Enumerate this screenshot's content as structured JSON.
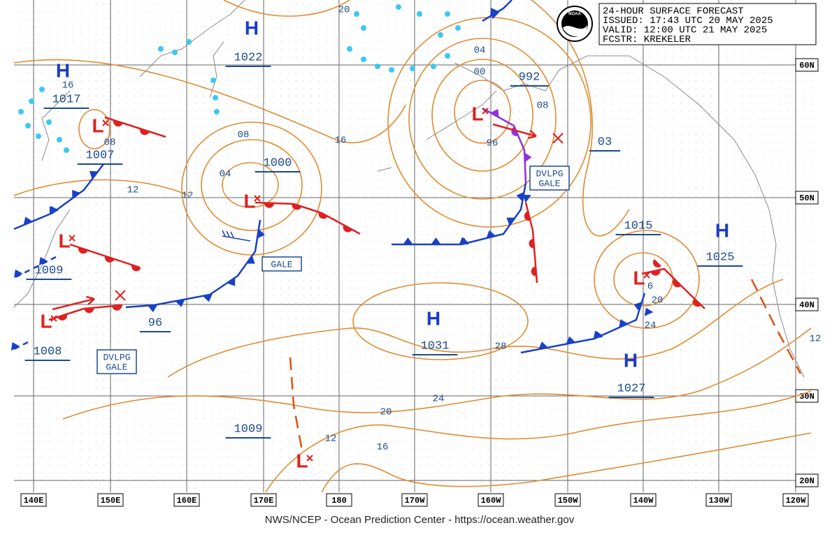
{
  "header": {
    "lines": [
      "24-HOUR SURFACE FORECAST",
      "ISSUED: 17:43 UTC 20 MAY 2025",
      "VALID: 12:00 UTC 21 MAY 2025",
      "FCSTR: KREKELER"
    ]
  },
  "logo": "NOAA",
  "longitude_labels": [
    "140E",
    "150E",
    "160E",
    "170E",
    "180",
    "170W",
    "160W",
    "150W",
    "140W",
    "130W",
    "120W"
  ],
  "latitude_labels": [
    "60N",
    "50N",
    "40N",
    "30N",
    "20N"
  ],
  "pressure_centers": [
    {
      "symbol": "H",
      "pressure": "1022"
    },
    {
      "symbol": "H",
      "pressure": "1017"
    },
    {
      "symbol": "L",
      "pressure": "1007"
    },
    {
      "symbol": "L",
      "pressure": "1000"
    },
    {
      "symbol": "L",
      "pressure": "1009"
    },
    {
      "symbol": "L",
      "pressure": "1008"
    },
    {
      "pressure": "96"
    },
    {
      "symbol": "L",
      "pressure": "992"
    },
    {
      "pressure": "03"
    },
    {
      "symbol": "H",
      "pressure": "1031"
    },
    {
      "symbol": "L",
      "pressure": "1015"
    },
    {
      "symbol": "H",
      "pressure": "1025"
    },
    {
      "symbol": "H",
      "pressure": "1027"
    },
    {
      "symbol": "L",
      "pressure": "1009"
    }
  ],
  "isobar_labels": [
    "20",
    "16",
    "08",
    "12",
    "12",
    "08",
    "04",
    "16",
    "04",
    "00",
    "08",
    "96",
    "6",
    "20",
    "24",
    "28",
    "24",
    "20",
    "16",
    "12",
    "12"
  ],
  "warnings": [
    {
      "lines": [
        "GALE"
      ]
    },
    {
      "lines": [
        "DVLPG",
        "GALE"
      ]
    },
    {
      "lines": [
        "DVLPG",
        "GALE"
      ]
    }
  ],
  "footer": "NWS/NCEP - Ocean Prediction Center - https://ocean.weather.gov"
}
